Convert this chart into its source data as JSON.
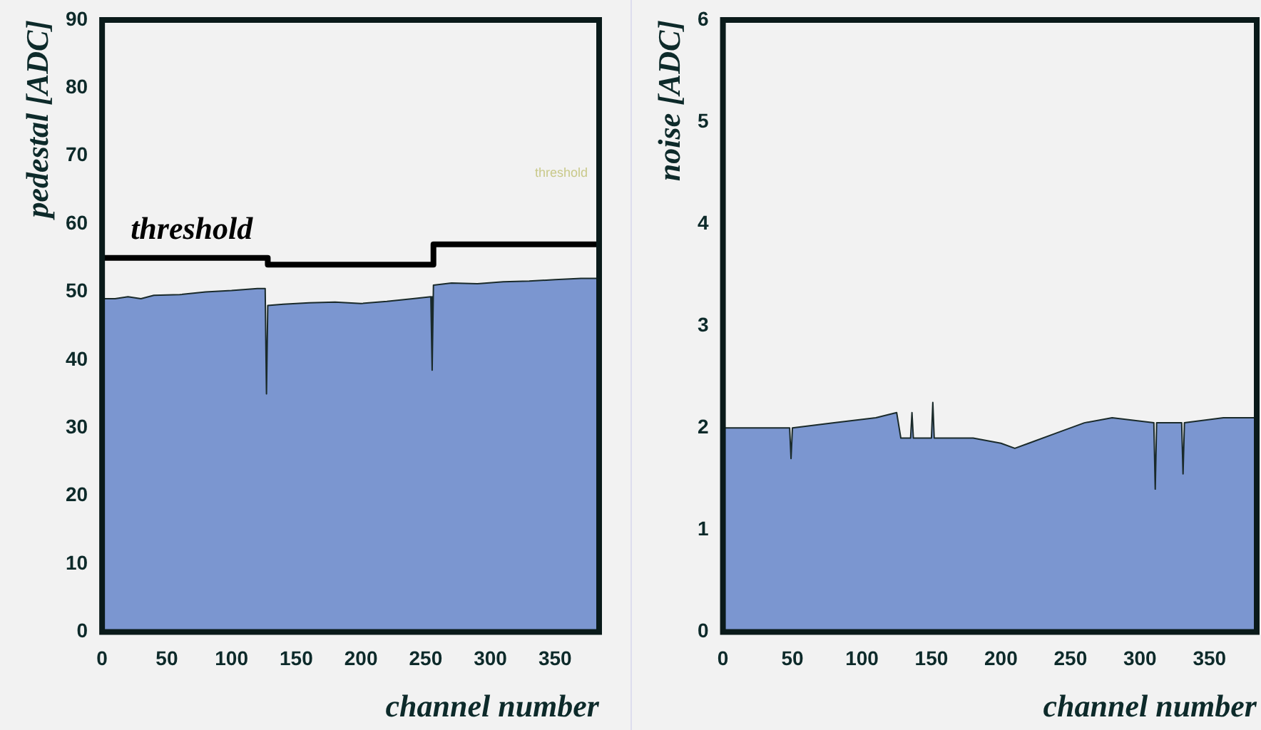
{
  "chart_data": [
    {
      "type": "area",
      "ylabel": "pedestal [ADC]",
      "xlabel": "channel number",
      "xlim": [
        0,
        384
      ],
      "ylim": [
        0,
        90
      ],
      "xticks": [
        0,
        50,
        100,
        150,
        200,
        250,
        300,
        350
      ],
      "yticks": [
        0,
        10,
        20,
        30,
        40,
        50,
        60,
        70,
        80,
        90
      ],
      "grid": false,
      "legend": false,
      "annotations": [
        "threshold"
      ],
      "series": [
        {
          "color": "#7b96d0",
          "x": [
            0,
            10,
            20,
            30,
            40,
            60,
            80,
            100,
            120,
            126,
            127,
            128,
            140,
            160,
            180,
            200,
            220,
            240,
            254,
            255,
            256,
            270,
            290,
            310,
            330,
            350,
            370,
            384
          ],
          "values": [
            49,
            49,
            49.3,
            49,
            49.5,
            49.6,
            50,
            50.2,
            50.5,
            50.5,
            35,
            48,
            48.2,
            48.4,
            48.5,
            48.3,
            48.6,
            49,
            49.3,
            38.5,
            51,
            51.3,
            51.2,
            51.5,
            51.6,
            51.8,
            52,
            52
          ]
        },
        {
          "type": "step",
          "name": "threshold",
          "color": "#000000",
          "x": [
            0,
            128,
            256,
            384
          ],
          "values": [
            55,
            54,
            57,
            57
          ]
        }
      ]
    },
    {
      "type": "area",
      "ylabel": "noise [ADC]",
      "xlabel": "channel number",
      "xlim": [
        0,
        384
      ],
      "ylim": [
        0,
        6
      ],
      "xticks": [
        0,
        50,
        100,
        150,
        200,
        250,
        300,
        350
      ],
      "yticks": [
        0,
        1,
        2,
        3,
        4,
        5,
        6
      ],
      "grid": false,
      "legend": false,
      "series": [
        {
          "color": "#7b96d0",
          "x": [
            0,
            20,
            48,
            49,
            50,
            80,
            110,
            125,
            128,
            135,
            136,
            137,
            150,
            151,
            152,
            180,
            200,
            210,
            220,
            240,
            260,
            280,
            310,
            311,
            312,
            330,
            331,
            332,
            360,
            384
          ],
          "values": [
            2.0,
            2.0,
            2.0,
            1.7,
            2.0,
            2.05,
            2.1,
            2.15,
            1.9,
            1.9,
            2.15,
            1.9,
            1.9,
            2.25,
            1.9,
            1.9,
            1.85,
            1.8,
            1.85,
            1.95,
            2.05,
            2.1,
            2.05,
            1.4,
            2.05,
            2.05,
            1.55,
            2.05,
            2.1,
            2.1
          ]
        }
      ]
    }
  ]
}
